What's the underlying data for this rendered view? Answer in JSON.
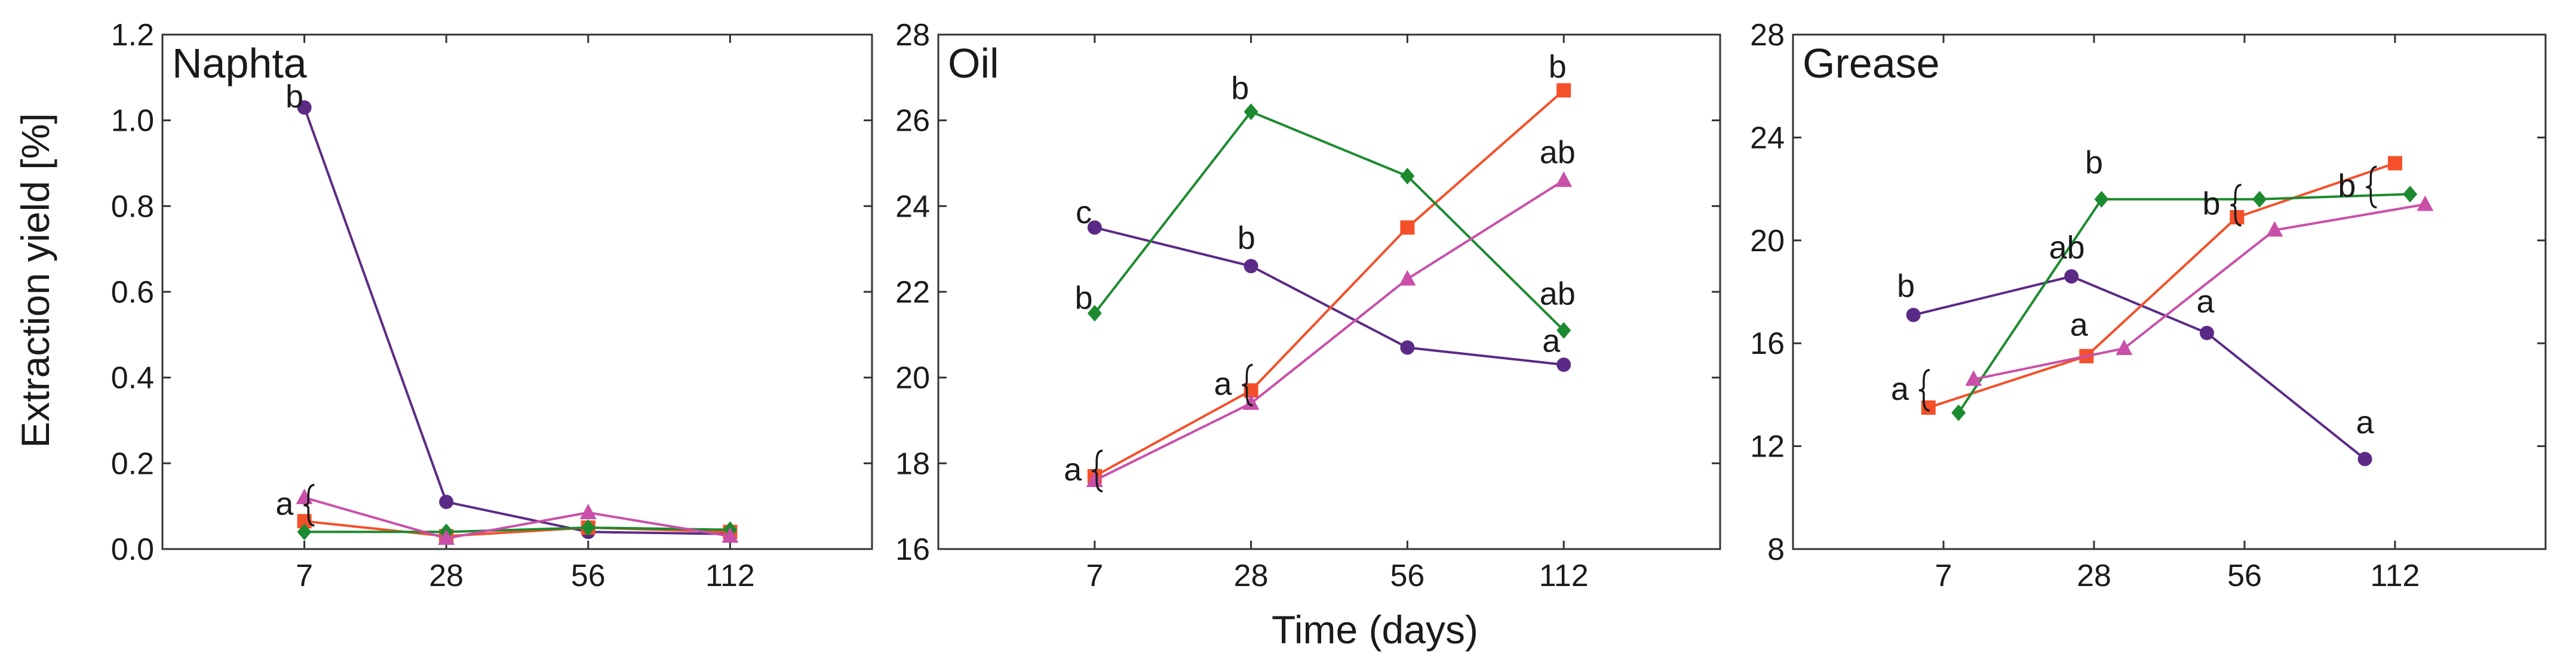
{
  "figure": {
    "shared_xlabel": "Time (days)",
    "shared_ylabel": "Extraction yield [%]"
  },
  "series_styles": [
    {
      "name": "Purple",
      "marker": "circle",
      "color": "#5b2a86"
    },
    {
      "name": "Orange",
      "marker": "square",
      "color": "#f4502a"
    },
    {
      "name": "Green",
      "marker": "diamond",
      "color": "#1c8a2e"
    },
    {
      "name": "Pink",
      "marker": "triangle",
      "color": "#c94fa8"
    }
  ],
  "chart_data": [
    {
      "type": "line",
      "title": "Naphta",
      "xlabel": "",
      "ylabel": "Extraction yield [%]",
      "categories": [
        "7",
        "28",
        "56",
        "112"
      ],
      "ylim": [
        0,
        1.2
      ],
      "yticks": [
        "0.0",
        "0.2",
        "0.4",
        "0.6",
        "0.8",
        "1.0",
        "1.2"
      ],
      "series": [
        {
          "name": "Purple",
          "x": [
            1.0,
            2.0,
            3.0,
            4.0
          ],
          "values": [
            1.03,
            0.11,
            0.04,
            0.035
          ]
        },
        {
          "name": "Orange",
          "x": [
            1.0,
            2.0,
            3.0,
            4.0
          ],
          "values": [
            0.065,
            0.03,
            0.05,
            0.04
          ]
        },
        {
          "name": "Green",
          "x": [
            1.0,
            2.0,
            3.0,
            4.0
          ],
          "values": [
            0.04,
            0.04,
            0.05,
            0.045
          ]
        },
        {
          "name": "Pink",
          "x": [
            1.0,
            2.0,
            3.0,
            4.0
          ],
          "values": [
            0.12,
            0.025,
            0.085,
            0.03
          ]
        }
      ],
      "annotations": [
        {
          "text": "b",
          "x": 0.93,
          "y": 1.03,
          "brace": false
        },
        {
          "text": "a",
          "x": 0.86,
          "y": 0.08,
          "brace": true
        }
      ]
    },
    {
      "type": "line",
      "title": "Oil",
      "xlabel": "Time (days)",
      "ylabel": "",
      "categories": [
        "7",
        "28",
        "56",
        "112"
      ],
      "ylim": [
        16,
        28
      ],
      "yticks": [
        "16",
        "18",
        "20",
        "22",
        "24",
        "26",
        "28"
      ],
      "series": [
        {
          "name": "Purple",
          "x": [
            1.0,
            2.0,
            3.0,
            4.0
          ],
          "values": [
            23.5,
            22.6,
            20.7,
            20.3
          ]
        },
        {
          "name": "Orange",
          "x": [
            1.0,
            2.0,
            3.0,
            4.0
          ],
          "values": [
            17.7,
            19.7,
            23.5,
            26.7
          ]
        },
        {
          "name": "Green",
          "x": [
            1.0,
            2.0,
            3.0,
            4.0
          ],
          "values": [
            21.5,
            26.2,
            24.7,
            21.1
          ]
        },
        {
          "name": "Pink",
          "x": [
            1.0,
            2.0,
            3.0,
            4.0
          ],
          "values": [
            17.6,
            19.4,
            22.3,
            24.6
          ]
        }
      ],
      "annotations": [
        {
          "text": "c",
          "x": 0.93,
          "y": 23.6,
          "brace": false
        },
        {
          "text": "b",
          "x": 0.93,
          "y": 21.6,
          "brace": false
        },
        {
          "text": "b",
          "x": 1.93,
          "y": 26.5,
          "brace": false
        },
        {
          "text": "b",
          "x": 1.97,
          "y": 23.0,
          "brace": false
        },
        {
          "text": "a",
          "x": 1.82,
          "y": 19.6,
          "brace": true
        },
        {
          "text": "a",
          "x": 0.86,
          "y": 17.6,
          "brace": true
        },
        {
          "text": "b",
          "x": 3.96,
          "y": 27.0,
          "brace": false
        },
        {
          "text": "ab",
          "x": 3.96,
          "y": 25.0,
          "brace": false
        },
        {
          "text": "ab",
          "x": 3.96,
          "y": 21.7,
          "brace": false
        },
        {
          "text": "a",
          "x": 3.92,
          "y": 20.6,
          "brace": false
        }
      ]
    },
    {
      "type": "line",
      "title": "Grease",
      "xlabel": "",
      "ylabel": "",
      "categories": [
        "7",
        "28",
        "56",
        "112"
      ],
      "ylim": [
        8,
        28
      ],
      "yticks": [
        "8",
        "12",
        "16",
        "20",
        "24",
        "28"
      ],
      "series": [
        {
          "name": "Purple",
          "x": [
            0.8,
            1.85,
            2.75,
            3.8
          ],
          "values": [
            17.1,
            18.6,
            16.4,
            11.5
          ]
        },
        {
          "name": "Orange",
          "x": [
            0.9,
            1.95,
            2.95,
            4.0
          ],
          "values": [
            13.5,
            15.5,
            20.9,
            23.0
          ]
        },
        {
          "name": "Green",
          "x": [
            1.1,
            2.05,
            3.1,
            4.1
          ],
          "values": [
            13.3,
            21.6,
            21.6,
            21.8
          ]
        },
        {
          "name": "Pink",
          "x": [
            1.2,
            2.2,
            3.2,
            4.2
          ],
          "values": [
            14.6,
            15.8,
            20.4,
            21.4
          ]
        }
      ],
      "annotations": [
        {
          "text": "b",
          "x": 0.75,
          "y": 17.8,
          "brace": false
        },
        {
          "text": "a",
          "x": 0.71,
          "y": 13.8,
          "brace": true
        },
        {
          "text": "ab",
          "x": 1.82,
          "y": 19.3,
          "brace": false
        },
        {
          "text": "b",
          "x": 2.0,
          "y": 22.6,
          "brace": false
        },
        {
          "text": "a",
          "x": 1.9,
          "y": 16.3,
          "brace": false
        },
        {
          "text": "a",
          "x": 2.74,
          "y": 17.2,
          "brace": false
        },
        {
          "text": "b",
          "x": 2.78,
          "y": 21.0,
          "brace": true
        },
        {
          "text": "b",
          "x": 3.68,
          "y": 21.7,
          "brace": true
        },
        {
          "text": "a",
          "x": 3.8,
          "y": 12.5,
          "brace": false
        }
      ]
    }
  ]
}
